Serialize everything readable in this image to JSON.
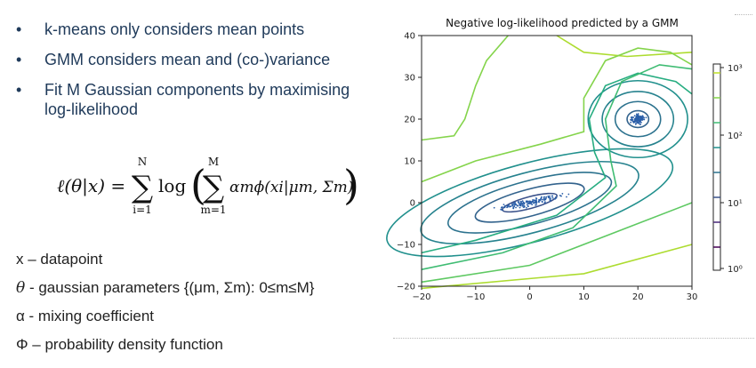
{
  "bullets": [
    "k-means only considers mean points",
    "GMM considers mean and (co-)variance",
    "Fit M Gaussian components by maximising log-likelihood"
  ],
  "bullet_symbol": "•",
  "formula": {
    "lhs": "ℓ(θ|x) =",
    "outer_sum_top": "N",
    "outer_sum_bottom": "i=1",
    "log": "log",
    "inner_sum_top": "M",
    "inner_sum_bottom": "m=1",
    "term": "αmϕ(xi|μm, Σm)"
  },
  "definitions": [
    {
      "sym": "x",
      "text": " – datapoint"
    },
    {
      "sym": "θ",
      "text": " - gaussian parameters {(μm, Σm): 0≤m≤M}"
    },
    {
      "sym": "α",
      "text": " - mixing coefficient"
    },
    {
      "sym": "Φ",
      "text": " – probability density function"
    }
  ],
  "chart_data": {
    "type": "contour",
    "title": "Negative log-likelihood predicted by a GMM",
    "xlim": [
      -20,
      30
    ],
    "ylim": [
      -20,
      40
    ],
    "x_ticks": [
      "−20",
      "−10",
      "0",
      "10",
      "20",
      "30"
    ],
    "y_ticks": [
      "−20",
      "−10",
      "0",
      "10",
      "20",
      "30",
      "40"
    ],
    "colorbar_ticks": [
      "10⁰",
      "10¹",
      "10²",
      "10³"
    ],
    "colorbar_scale": "log",
    "components": [
      {
        "center": [
          0,
          0
        ],
        "shape": "elongated",
        "orientation_deg": 15
      },
      {
        "center": [
          20,
          20
        ],
        "shape": "spherical"
      }
    ],
    "colors": {
      "low": "#440154",
      "mid": "#21908d",
      "high": "#bddf26",
      "points": "#2a5ea8"
    }
  }
}
